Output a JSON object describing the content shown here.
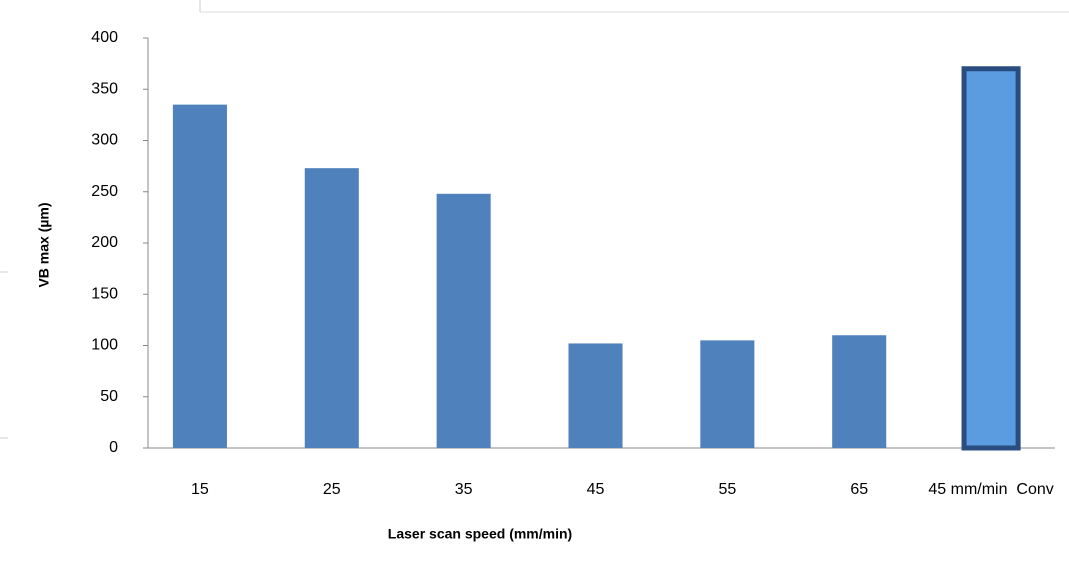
{
  "chart_data": {
    "type": "bar",
    "xlabel": "Laser scan speed (mm/min)",
    "ylabel": "VB max (µm)",
    "categories": [
      "15",
      "25",
      "35",
      "45",
      "55",
      "65",
      "45 mm/min  Conv"
    ],
    "values": [
      335,
      273,
      248,
      102,
      105,
      110,
      370
    ],
    "colors": [
      "#4f81bd",
      "#4f81bd",
      "#4f81bd",
      "#4f81bd",
      "#4f81bd",
      "#4f81bd",
      "#5b9be0"
    ],
    "edgecolors": [
      null,
      null,
      null,
      null,
      null,
      null,
      "#2a4d80"
    ],
    "ylim": [
      0,
      400
    ],
    "yticks": [
      0,
      50,
      100,
      150,
      200,
      250,
      300,
      350,
      400
    ],
    "grid": false
  }
}
